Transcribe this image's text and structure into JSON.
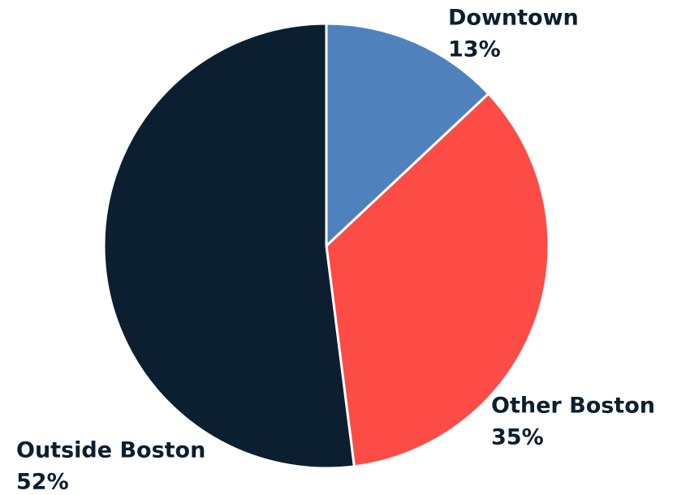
{
  "chart_data": {
    "type": "pie",
    "categories": [
      "Downtown",
      "Other Boston",
      "Outside Boston"
    ],
    "values": [
      13,
      35,
      52
    ],
    "value_labels": [
      "13%",
      "35%",
      "52%"
    ],
    "colors": [
      "#4f81bd",
      "#fd4c45",
      "#0b1f30"
    ]
  }
}
